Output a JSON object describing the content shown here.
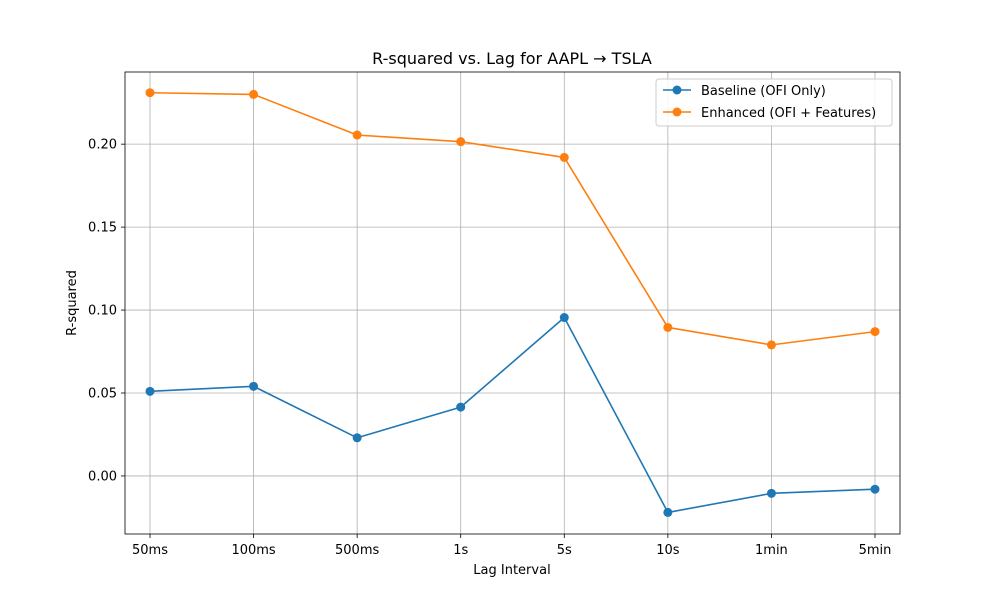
{
  "chart_data": {
    "type": "line",
    "title": "R-squared vs. Lag for AAPL → TSLA",
    "xlabel": "Lag Interval",
    "ylabel": "R-squared",
    "categories": [
      "50ms",
      "100ms",
      "500ms",
      "1s",
      "5s",
      "10s",
      "1min",
      "5min"
    ],
    "ylim": [
      -0.035,
      0.2435
    ],
    "yticks": [
      0.0,
      0.05,
      0.1,
      0.15,
      0.2
    ],
    "ytick_labels": [
      "0.00",
      "0.05",
      "0.10",
      "0.15",
      "0.20"
    ],
    "grid": true,
    "legend_position": "top-right",
    "series": [
      {
        "name": "Baseline (OFI Only)",
        "color": "#1f77b4",
        "values": [
          0.051,
          0.054,
          0.023,
          0.0415,
          0.0955,
          -0.022,
          -0.0105,
          -0.008
        ]
      },
      {
        "name": "Enhanced (OFI + Features)",
        "color": "#ff7f0e",
        "values": [
          0.231,
          0.23,
          0.2055,
          0.2015,
          0.192,
          0.0895,
          0.079,
          0.087
        ]
      }
    ]
  }
}
